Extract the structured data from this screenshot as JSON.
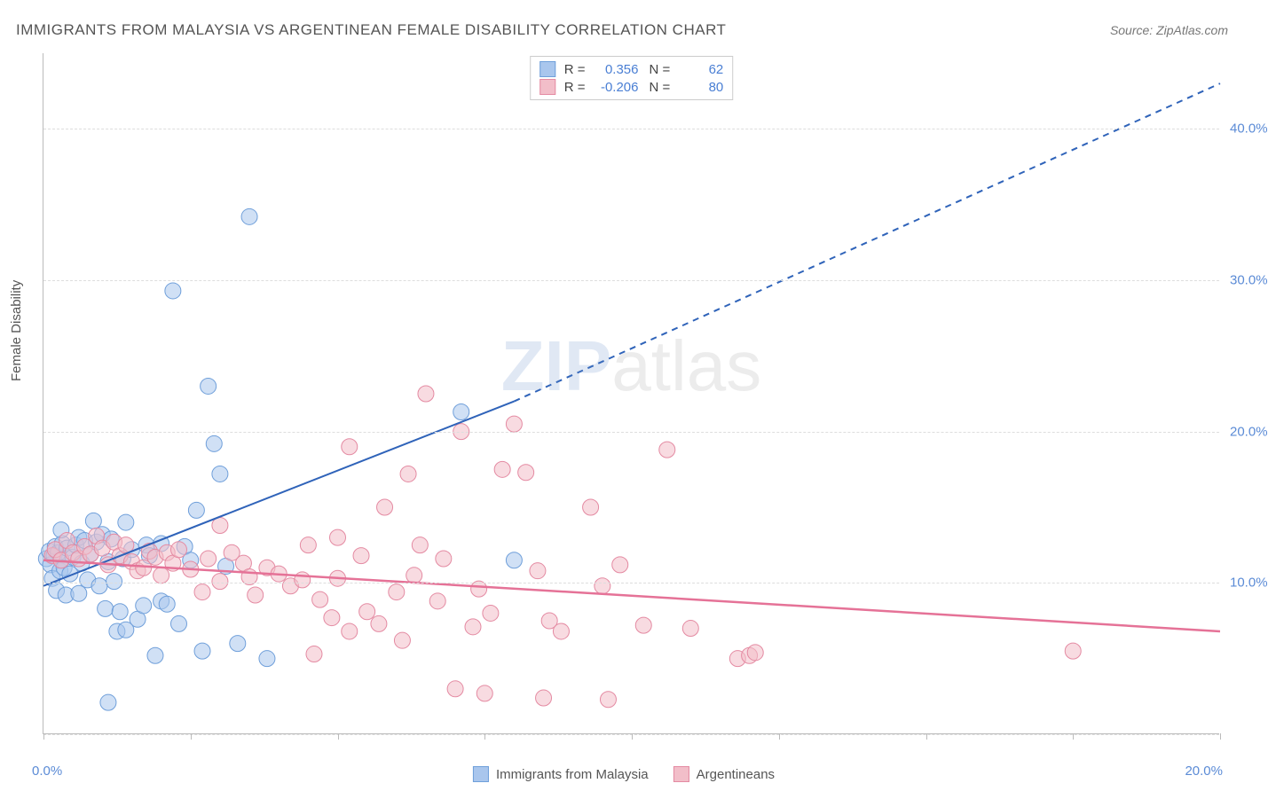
{
  "title": "IMMIGRANTS FROM MALAYSIA VS ARGENTINEAN FEMALE DISABILITY CORRELATION CHART",
  "source": "Source: ZipAtlas.com",
  "watermark": {
    "main": "ZIP",
    "suffix": "atlas"
  },
  "chart": {
    "type": "scatter",
    "background_color": "#ffffff",
    "grid_color": "#dddddd",
    "axis_color": "#bbbbbb",
    "x": {
      "min": 0,
      "max": 20,
      "label_start": "0.0%",
      "label_end": "20.0%",
      "ticks_every": 2.5
    },
    "y": {
      "min": 0,
      "max": 45,
      "title": "Female Disability",
      "labels": [
        {
          "v": 10,
          "text": "10.0%"
        },
        {
          "v": 20,
          "text": "20.0%"
        },
        {
          "v": 30,
          "text": "30.0%"
        },
        {
          "v": 40,
          "text": "40.0%"
        }
      ],
      "gridlines": [
        0,
        10,
        20,
        30,
        40
      ]
    },
    "series": [
      {
        "id": "malaysia",
        "label": "Immigrants from Malaysia",
        "fill_color": "#a9c6ed",
        "stroke_color": "#6f9fda",
        "fill_opacity": 0.55,
        "marker_radius": 9,
        "r_value": "0.356",
        "n_value": "62",
        "regression": {
          "color": "#2f63b9",
          "width": 2,
          "solid": {
            "x1": 0,
            "y1": 9.8,
            "x2": 8.0,
            "y2": 22.0
          },
          "dashed": {
            "x1": 8.0,
            "y1": 22.0,
            "x2": 20.0,
            "y2": 43.0
          }
        },
        "points": [
          [
            0.05,
            11.6
          ],
          [
            0.1,
            12.1
          ],
          [
            0.12,
            11.2
          ],
          [
            0.15,
            10.3
          ],
          [
            0.18,
            11.8
          ],
          [
            0.2,
            12.4
          ],
          [
            0.22,
            9.5
          ],
          [
            0.25,
            12.0
          ],
          [
            0.28,
            10.8
          ],
          [
            0.3,
            11.5
          ],
          [
            0.32,
            12.6
          ],
          [
            0.35,
            11.0
          ],
          [
            0.38,
            9.2
          ],
          [
            0.4,
            12.3
          ],
          [
            0.45,
            10.6
          ],
          [
            0.5,
            11.7
          ],
          [
            0.55,
            12.5
          ],
          [
            0.6,
            13.0
          ],
          [
            0.65,
            11.3
          ],
          [
            0.7,
            12.8
          ],
          [
            0.75,
            10.2
          ],
          [
            0.8,
            11.9
          ],
          [
            0.85,
            14.1
          ],
          [
            0.9,
            12.7
          ],
          [
            0.95,
            9.8
          ],
          [
            1.0,
            13.2
          ],
          [
            1.05,
            8.3
          ],
          [
            1.1,
            11.4
          ],
          [
            1.15,
            12.9
          ],
          [
            1.2,
            10.1
          ],
          [
            1.25,
            6.8
          ],
          [
            1.3,
            8.1
          ],
          [
            1.35,
            11.6
          ],
          [
            1.4,
            14.0
          ],
          [
            1.5,
            12.2
          ],
          [
            1.6,
            7.6
          ],
          [
            1.7,
            8.5
          ],
          [
            1.75,
            12.5
          ],
          [
            1.8,
            11.8
          ],
          [
            1.9,
            5.2
          ],
          [
            2.0,
            8.8
          ],
          [
            2.1,
            8.6
          ],
          [
            2.2,
            29.3
          ],
          [
            2.3,
            7.3
          ],
          [
            2.4,
            12.4
          ],
          [
            2.5,
            11.5
          ],
          [
            2.6,
            14.8
          ],
          [
            2.7,
            5.5
          ],
          [
            2.8,
            23.0
          ],
          [
            2.9,
            19.2
          ],
          [
            3.0,
            17.2
          ],
          [
            3.1,
            11.1
          ],
          [
            3.3,
            6.0
          ],
          [
            3.5,
            34.2
          ],
          [
            3.8,
            5.0
          ],
          [
            1.1,
            2.1
          ],
          [
            0.6,
            9.3
          ],
          [
            0.3,
            13.5
          ],
          [
            7.1,
            21.3
          ],
          [
            8.0,
            11.5
          ],
          [
            1.4,
            6.9
          ],
          [
            2.0,
            12.6
          ]
        ]
      },
      {
        "id": "argentineans",
        "label": "Argentineans",
        "fill_color": "#f2bec9",
        "stroke_color": "#e48aa2",
        "fill_opacity": 0.55,
        "marker_radius": 9,
        "r_value": "-0.206",
        "n_value": "80",
        "regression": {
          "color": "#e57297",
          "width": 2.5,
          "solid": {
            "x1": 0,
            "y1": 11.5,
            "x2": 20.0,
            "y2": 6.8
          }
        },
        "points": [
          [
            0.15,
            11.8
          ],
          [
            0.2,
            12.2
          ],
          [
            0.3,
            11.5
          ],
          [
            0.4,
            12.8
          ],
          [
            0.5,
            12.0
          ],
          [
            0.6,
            11.6
          ],
          [
            0.7,
            12.4
          ],
          [
            0.8,
            11.9
          ],
          [
            0.9,
            13.1
          ],
          [
            1.0,
            12.3
          ],
          [
            1.1,
            11.2
          ],
          [
            1.2,
            12.7
          ],
          [
            1.3,
            11.8
          ],
          [
            1.4,
            12.5
          ],
          [
            1.5,
            11.4
          ],
          [
            1.6,
            10.8
          ],
          [
            1.7,
            11.0
          ],
          [
            1.8,
            12.1
          ],
          [
            1.9,
            11.7
          ],
          [
            2.0,
            10.5
          ],
          [
            2.1,
            12.0
          ],
          [
            2.2,
            11.3
          ],
          [
            2.3,
            12.2
          ],
          [
            2.5,
            10.9
          ],
          [
            2.7,
            9.4
          ],
          [
            2.8,
            11.6
          ],
          [
            3.0,
            10.1
          ],
          [
            3.2,
            12.0
          ],
          [
            3.4,
            11.3
          ],
          [
            3.5,
            10.4
          ],
          [
            3.6,
            9.2
          ],
          [
            3.8,
            11.0
          ],
          [
            4.0,
            10.6
          ],
          [
            4.2,
            9.8
          ],
          [
            4.4,
            10.2
          ],
          [
            4.5,
            12.5
          ],
          [
            4.7,
            8.9
          ],
          [
            4.9,
            7.7
          ],
          [
            5.0,
            10.3
          ],
          [
            5.2,
            6.8
          ],
          [
            5.4,
            11.8
          ],
          [
            5.5,
            8.1
          ],
          [
            5.7,
            7.3
          ],
          [
            5.8,
            15.0
          ],
          [
            6.0,
            9.4
          ],
          [
            6.1,
            6.2
          ],
          [
            6.2,
            17.2
          ],
          [
            6.3,
            10.5
          ],
          [
            6.5,
            22.5
          ],
          [
            6.7,
            8.8
          ],
          [
            6.8,
            11.6
          ],
          [
            7.0,
            3.0
          ],
          [
            7.1,
            20.0
          ],
          [
            7.3,
            7.1
          ],
          [
            7.4,
            9.6
          ],
          [
            7.5,
            2.7
          ],
          [
            7.6,
            8.0
          ],
          [
            7.8,
            17.5
          ],
          [
            8.0,
            20.5
          ],
          [
            8.2,
            17.3
          ],
          [
            8.4,
            10.8
          ],
          [
            8.6,
            7.5
          ],
          [
            8.8,
            6.8
          ],
          [
            5.2,
            19.0
          ],
          [
            9.3,
            15.0
          ],
          [
            9.5,
            9.8
          ],
          [
            9.8,
            11.2
          ],
          [
            10.2,
            7.2
          ],
          [
            10.6,
            18.8
          ],
          [
            11.0,
            7.0
          ],
          [
            11.8,
            5.0
          ],
          [
            12.0,
            5.2
          ],
          [
            12.1,
            5.4
          ],
          [
            8.5,
            2.4
          ],
          [
            17.5,
            5.5
          ],
          [
            9.6,
            2.3
          ],
          [
            4.6,
            5.3
          ],
          [
            3.0,
            13.8
          ],
          [
            6.4,
            12.5
          ],
          [
            5.0,
            13.0
          ]
        ]
      }
    ],
    "legend_bottom": {
      "items": [
        {
          "swatch_fill": "#a9c6ed",
          "swatch_stroke": "#6f9fda",
          "label": "Immigrants from Malaysia"
        },
        {
          "swatch_fill": "#f2bec9",
          "swatch_stroke": "#e48aa2",
          "label": "Argentineans"
        }
      ]
    }
  }
}
